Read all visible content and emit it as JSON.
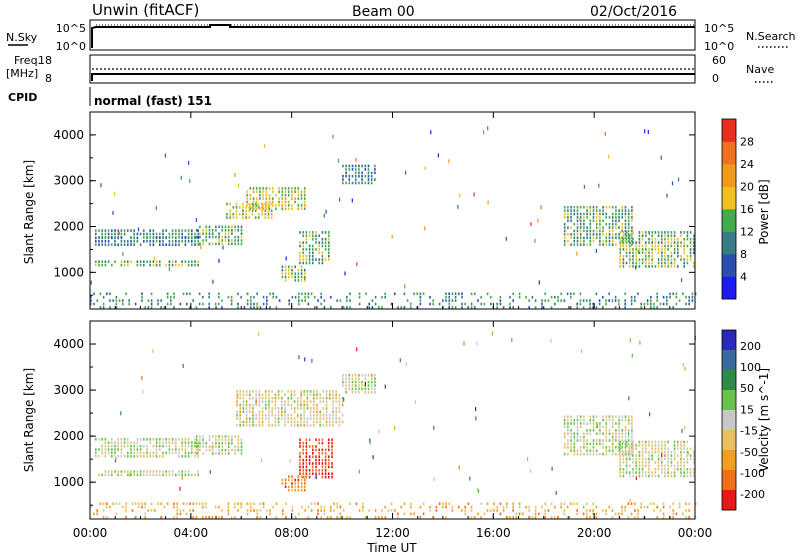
{
  "header": {
    "station": "Unwin (fitACF)",
    "beam": "Beam 00",
    "date": "02/Oct/2016"
  },
  "params": {
    "nsky_label": "N.Sky",
    "nsky_ticks": [
      "10^5",
      "10^0"
    ],
    "nsearch_label": "N.Search",
    "nsearch_ticks": [
      "10^5",
      "10^0"
    ],
    "freq_label_1": "Freq.",
    "freq_label_2": "[MHz]",
    "freq_ticks": [
      "18",
      "8"
    ],
    "nave_label": "Nave",
    "nave_ticks": [
      "60",
      "0"
    ],
    "cpid_label": "CPID",
    "cpid_value": "normal (fast) 151"
  },
  "colors": {
    "power": [
      "#1c1cf0",
      "#2a4fb0",
      "#3a7a86",
      "#44aa4c",
      "#f0c020",
      "#f09a1c",
      "#f07020",
      "#e83020"
    ],
    "velocity": [
      "#2a2ab8",
      "#3a6aa0",
      "#2f8a48",
      "#6ac24a",
      "#c8c8c8",
      "#e8c060",
      "#f0a020",
      "#f07018",
      "#e81818"
    ]
  },
  "chart_data": [
    {
      "type": "heatmap",
      "quantity": "power",
      "xlabel": "",
      "ylabel": "Slant Range [km]",
      "xlim": [
        0,
        24
      ],
      "ylim": [
        200,
        4500
      ],
      "x_ticks": [
        "00:00",
        "04:00",
        "08:00",
        "12:00",
        "16:00",
        "20:00",
        "00:00"
      ],
      "y_ticks": [
        1000,
        2000,
        3000,
        4000
      ],
      "colorbar_label": "Power [dB]",
      "colorbar_ticks": [
        4,
        8,
        12,
        16,
        20,
        24,
        28
      ],
      "colorbar_range": [
        0,
        32
      ],
      "regions": [
        {
          "x": [
            0.2,
            4.3
          ],
          "y": [
            1580,
            1780
          ],
          "level": 0.28
        },
        {
          "x": [
            0.2,
            4.3
          ],
          "y": [
            1780,
            1940
          ],
          "level": 0.35
        },
        {
          "x": [
            0.2,
            4.3
          ],
          "y": [
            1160,
            1260
          ],
          "level": 0.45
        },
        {
          "x": [
            4.2,
            6.1
          ],
          "y": [
            1640,
            2020
          ],
          "level": 0.4
        },
        {
          "x": [
            5.4,
            7.3
          ],
          "y": [
            2150,
            2520
          ],
          "level": 0.52
        },
        {
          "x": [
            6.2,
            8.6
          ],
          "y": [
            2400,
            2860
          ],
          "level": 0.55
        },
        {
          "x": [
            7.6,
            8.6
          ],
          "y": [
            820,
            1150
          ],
          "level": 0.47
        },
        {
          "x": [
            8.3,
            9.5
          ],
          "y": [
            1200,
            1900
          ],
          "level": 0.45
        },
        {
          "x": [
            10.0,
            11.3
          ],
          "y": [
            2950,
            3350
          ],
          "level": 0.3
        },
        {
          "x": [
            18.8,
            21.5
          ],
          "y": [
            1600,
            2450
          ],
          "level": 0.4
        },
        {
          "x": [
            21.0,
            24.0
          ],
          "y": [
            1150,
            1900
          ],
          "level": 0.45
        },
        {
          "x": [
            0.0,
            24.0
          ],
          "y": [
            200,
            560
          ],
          "level": 0.35
        }
      ]
    },
    {
      "type": "heatmap",
      "quantity": "velocity",
      "xlabel": "Time UT",
      "ylabel": "Slant Range [km]",
      "xlim": [
        0,
        24
      ],
      "ylim": [
        200,
        4500
      ],
      "x_ticks": [
        "00:00",
        "04:00",
        "08:00",
        "12:00",
        "16:00",
        "20:00",
        "00:00"
      ],
      "y_ticks": [
        1000,
        2000,
        3000,
        4000
      ],
      "colorbar_label": "Velocity [m s^-1]",
      "colorbar_ticks": [
        200,
        100,
        50,
        15,
        -15,
        -50,
        -100,
        -200
      ],
      "regions": [
        {
          "x": [
            0.2,
            4.3
          ],
          "y": [
            1550,
            1960
          ],
          "level": 0.5
        },
        {
          "x": [
            0.2,
            4.3
          ],
          "y": [
            1160,
            1260
          ],
          "level": 0.5
        },
        {
          "x": [
            4.2,
            6.1
          ],
          "y": [
            1640,
            2020
          ],
          "level": 0.5
        },
        {
          "x": [
            5.8,
            10.0
          ],
          "y": [
            2200,
            3000
          ],
          "level": 0.55
        },
        {
          "x": [
            7.6,
            8.6
          ],
          "y": [
            820,
            1150
          ],
          "level": 0.78
        },
        {
          "x": [
            8.3,
            9.6
          ],
          "y": [
            1100,
            1950
          ],
          "level": 0.93
        },
        {
          "x": [
            10.0,
            11.3
          ],
          "y": [
            2950,
            3350
          ],
          "level": 0.5
        },
        {
          "x": [
            18.8,
            21.5
          ],
          "y": [
            1600,
            2450
          ],
          "level": 0.5
        },
        {
          "x": [
            21.0,
            24.0
          ],
          "y": [
            1150,
            1900
          ],
          "level": 0.52
        },
        {
          "x": [
            0.0,
            24.0
          ],
          "y": [
            200,
            560
          ],
          "level": 0.68
        }
      ]
    }
  ]
}
